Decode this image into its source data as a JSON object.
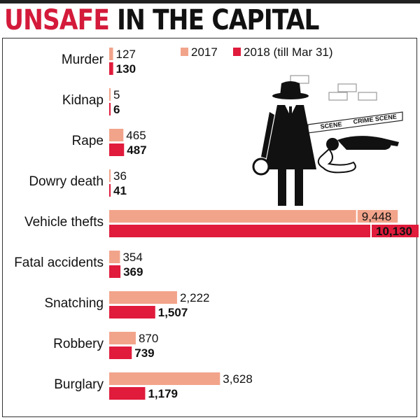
{
  "header": {
    "title_part1": "UNSAFE",
    "title_part2": "IN THE CAPITAL"
  },
  "illustration": {
    "tape_text_1": "SCENE",
    "tape_text_2": "CRIME SCENE"
  },
  "colors": {
    "series_2017": "#f2a48b",
    "series_2018": "#e01b3c",
    "title_accent": "#d41a3a"
  },
  "chart_data": {
    "type": "bar",
    "orientation": "horizontal",
    "title": "UNSAFE IN THE CAPITAL",
    "legend_position": "top-right",
    "categories": [
      "Murder",
      "Kidnap",
      "Rape",
      "Dowry death",
      "Vehicle thefts",
      "Fatal accidents",
      "Snatching",
      "Robbery",
      "Burglary"
    ],
    "series": [
      {
        "name": "2017",
        "values": [
          127,
          5,
          465,
          36,
          9448,
          354,
          2222,
          870,
          3628
        ],
        "labels": [
          "127",
          "5",
          "465",
          "36",
          "9,448",
          "354",
          "2,222",
          "870",
          "3,628"
        ]
      },
      {
        "name": "2018 (till Mar 31)",
        "values": [
          130,
          6,
          487,
          41,
          10130,
          369,
          1507,
          739,
          1179
        ],
        "labels": [
          "130",
          "6",
          "487",
          "41",
          "10,130",
          "369",
          "1,507",
          "739",
          "1,179"
        ]
      }
    ]
  }
}
